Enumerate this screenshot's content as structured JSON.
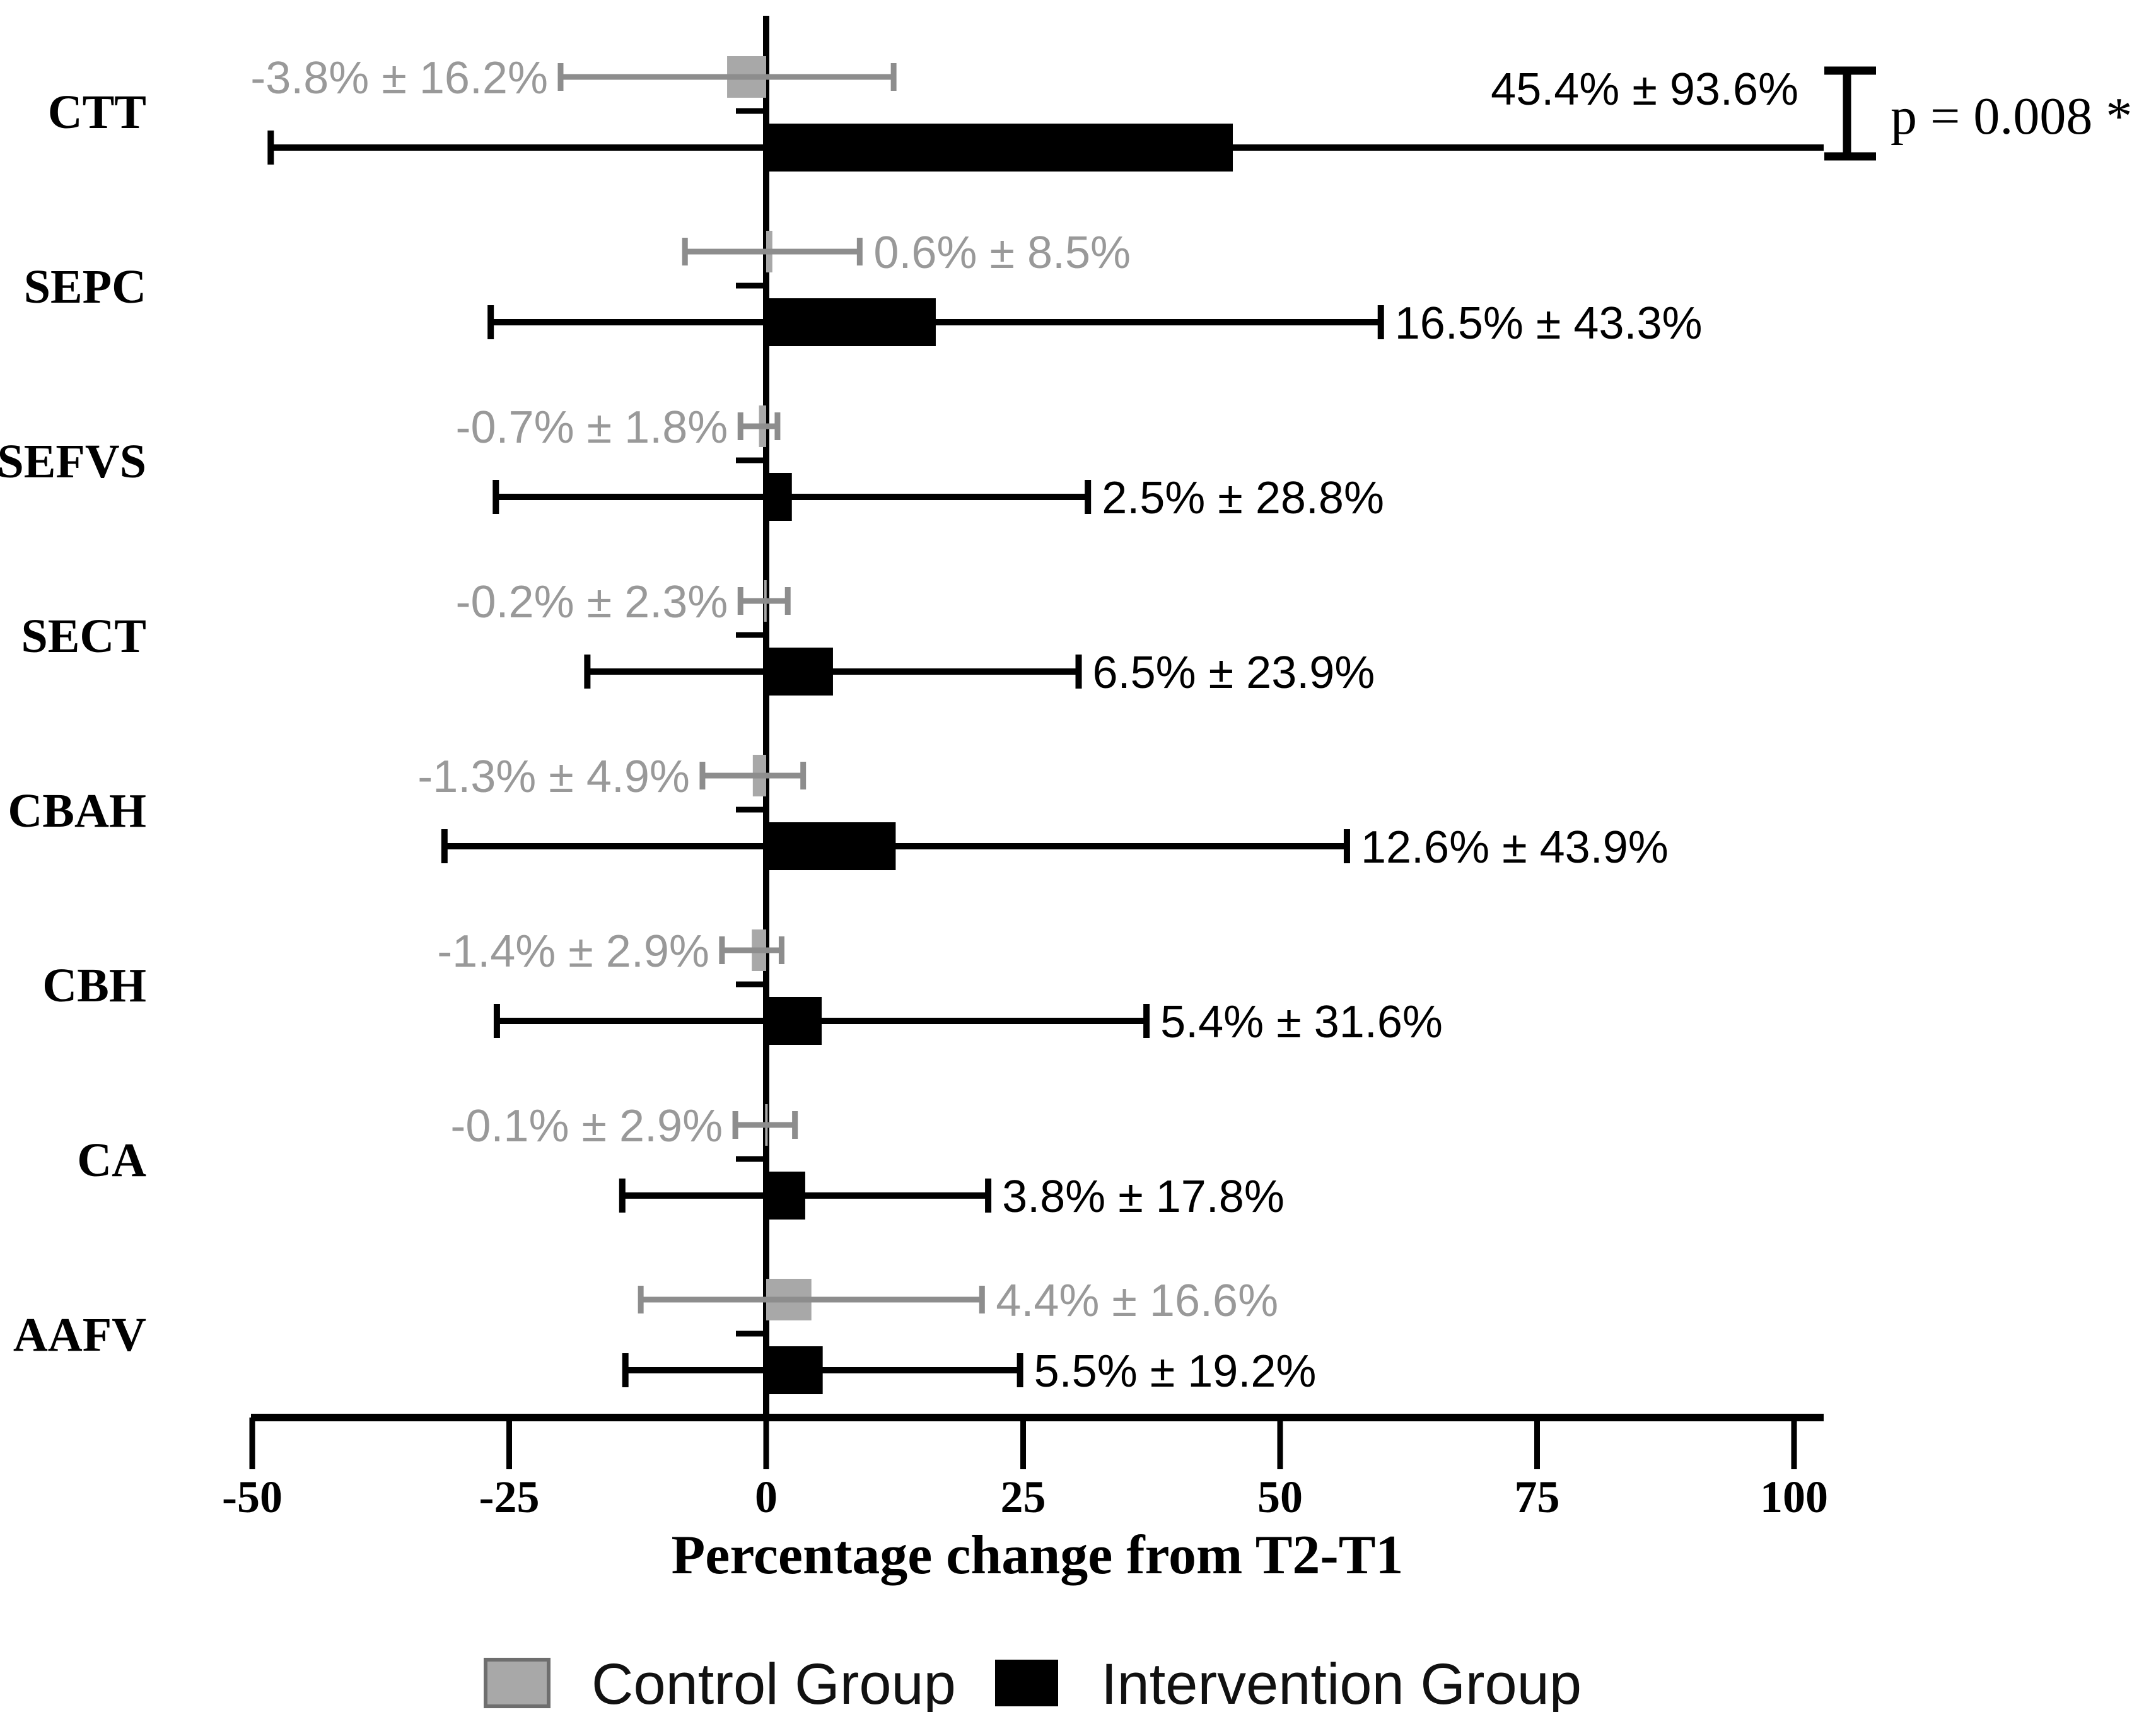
{
  "figure": {
    "x_axis": {
      "title": "Percentage change from T2-T1",
      "ticks": [
        "-50",
        "-25",
        "0",
        "25",
        "50",
        "75",
        "100"
      ]
    },
    "legend": [
      {
        "label": "Control Group",
        "color": "#a8a8a8"
      },
      {
        "label": "Intervention Group",
        "color": "#000000"
      }
    ],
    "p_annotation": "p = 0.008 *"
  },
  "chart_data": {
    "type": "bar",
    "orientation": "horizontal",
    "title": "",
    "xlabel": "Percentage change from T2-T1",
    "ylabel": "",
    "xlim": [
      -50,
      100
    ],
    "xticks": [
      -50,
      -25,
      0,
      25,
      50,
      75,
      100
    ],
    "grid": false,
    "legend_position": "bottom",
    "categories": [
      "CTT",
      "SEPC",
      "SEFVS",
      "SECT",
      "CBAH",
      "CBH",
      "CA",
      "AAFV"
    ],
    "series": [
      {
        "name": "Control Group",
        "color": "#a8a8a8",
        "error_color": "#8d8d8d",
        "label_color": "#999999",
        "values": [
          -3.8,
          0.6,
          -0.7,
          -0.2,
          -1.3,
          -1.4,
          -0.1,
          4.4
        ],
        "sd": [
          16.2,
          8.5,
          1.8,
          2.3,
          4.9,
          2.9,
          2.9,
          16.6
        ],
        "labels": [
          "-3.8% ± 16.2%",
          "0.6% ± 8.5%",
          "-0.7% ± 1.8%",
          "-0.2% ± 2.3%",
          "-1.3% ± 4.9%",
          "-1.4% ± 2.9%",
          "-0.1% ± 2.9%",
          "4.4% ± 16.6%"
        ],
        "label_side": [
          "left",
          "right",
          "left",
          "left",
          "left",
          "left",
          "left",
          "right"
        ]
      },
      {
        "name": "Intervention Group",
        "color": "#000000",
        "error_color": "#000000",
        "label_color": "#000000",
        "values": [
          45.4,
          16.5,
          2.5,
          6.5,
          12.6,
          5.4,
          3.8,
          5.5
        ],
        "sd": [
          93.6,
          43.3,
          28.8,
          23.9,
          43.9,
          31.6,
          17.8,
          19.2
        ],
        "labels": [
          "45.4% ± 93.6%",
          "16.5% ± 43.3%",
          "2.5% ± 28.8%",
          "6.5% ± 23.9%",
          "12.6% ± 43.9%",
          "5.4% ± 31.6%",
          "3.8% ± 17.8%",
          "5.5% ± 19.2%"
        ],
        "label_side": [
          "above",
          "right",
          "right",
          "right",
          "right",
          "right",
          "right",
          "right"
        ]
      }
    ],
    "significance": {
      "category": "CTT",
      "text": "p = 0.008 *"
    }
  }
}
